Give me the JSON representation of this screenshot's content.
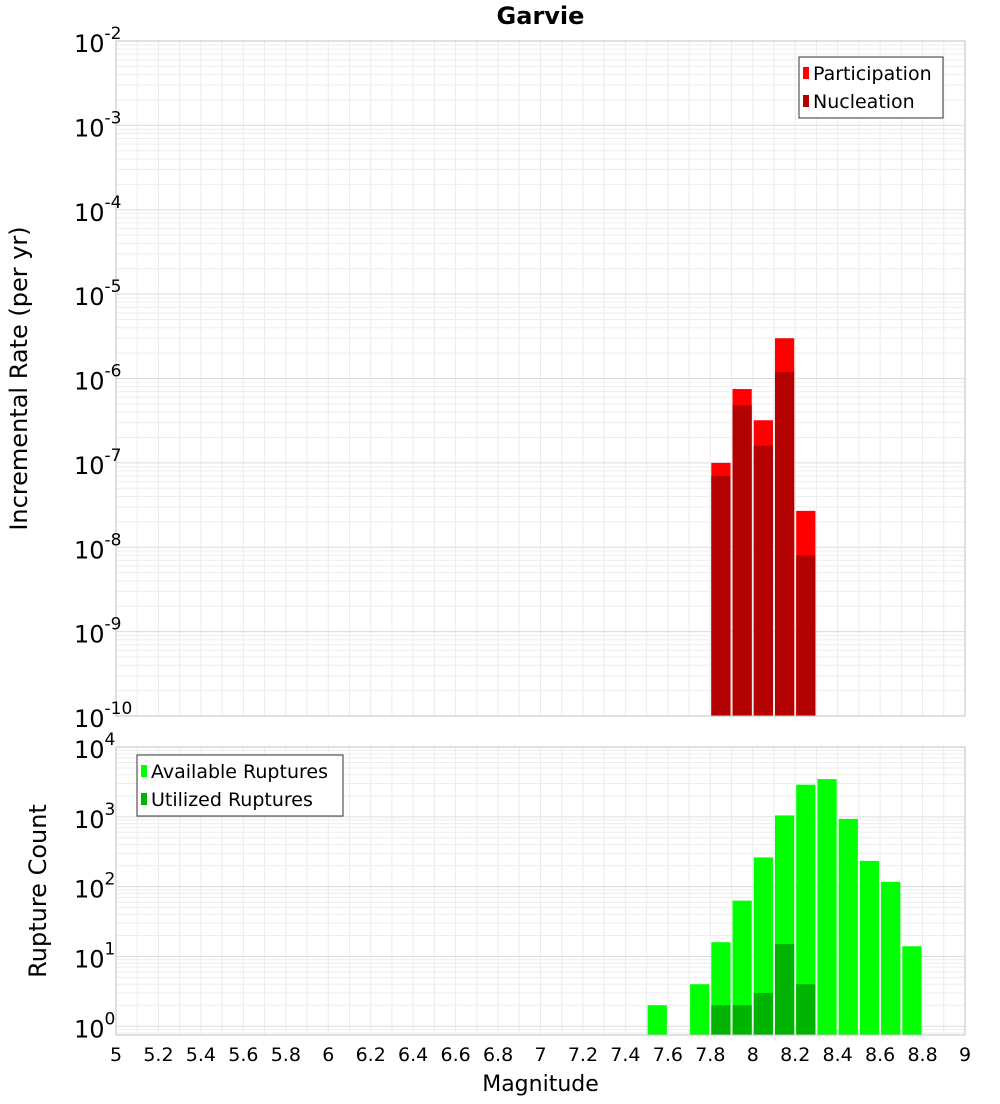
{
  "chart_data": [
    {
      "type": "bar",
      "title": "Garvie",
      "xlabel": "",
      "ylabel": "Incremental Rate (per yr)",
      "yscale": "log",
      "xlim": [
        5,
        9
      ],
      "ylim": [
        1e-10,
        0.01
      ],
      "ytick_exponents": [
        "-10",
        "-9",
        "-8",
        "-7",
        "-6",
        "-5",
        "-4",
        "-3",
        "-2"
      ],
      "grid": true,
      "legend_position": "top-right",
      "bar_width": 0.1,
      "series": [
        {
          "name": "Participation",
          "color": "#ff0000",
          "x": [
            7.85,
            7.95,
            8.05,
            8.15,
            8.25
          ],
          "values": [
            1e-07,
            7.5e-07,
            3.2e-07,
            3e-06,
            2.7e-08
          ]
        },
        {
          "name": "Nucleation",
          "color": "#b30000",
          "x": [
            7.85,
            7.95,
            8.05,
            8.15,
            8.25
          ],
          "values": [
            7e-08,
            4.8e-07,
            1.6e-07,
            1.2e-06,
            8e-09
          ]
        }
      ]
    },
    {
      "type": "bar",
      "title": "",
      "xlabel": "Magnitude",
      "ylabel": "Rupture Count",
      "yscale": "log",
      "xlim": [
        5,
        9
      ],
      "ylim": [
        0.75,
        10000
      ],
      "ytick_exponents": [
        "0",
        "1",
        "2",
        "3",
        "4"
      ],
      "xticks": [
        "5",
        "5.2",
        "5.4",
        "5.6",
        "5.8",
        "6",
        "6.2",
        "6.4",
        "6.6",
        "6.8",
        "7",
        "7.2",
        "7.4",
        "7.6",
        "7.8",
        "8",
        "8.2",
        "8.4",
        "8.6",
        "8.8",
        "9"
      ],
      "grid": true,
      "legend_position": "top-left",
      "bar_width": 0.1,
      "series": [
        {
          "name": "Available Ruptures",
          "color": "#00ff00",
          "x": [
            7.55,
            7.75,
            7.85,
            7.95,
            8.05,
            8.15,
            8.25,
            8.35,
            8.45,
            8.55,
            8.65,
            8.75
          ],
          "values": [
            2,
            4,
            16,
            63,
            262,
            1047,
            2884,
            3467,
            933,
            234,
            117,
            14
          ]
        },
        {
          "name": "Utilized Ruptures",
          "color": "#00b300",
          "x": [
            7.85,
            7.95,
            8.05,
            8.15,
            8.25
          ],
          "values": [
            2,
            2,
            3,
            15,
            4
          ]
        }
      ]
    }
  ]
}
